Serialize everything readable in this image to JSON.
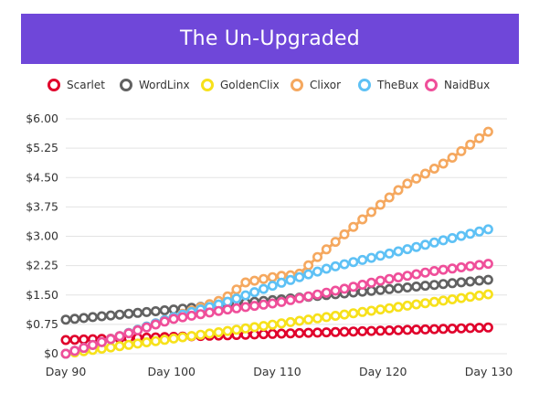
{
  "header": {
    "title": "The Un-Upgraded"
  },
  "chart_data": {
    "type": "line",
    "title": "The Un-Upgraded",
    "xlabel": "",
    "ylabel": "",
    "x_ticks": [
      "Day 90",
      "Day 100",
      "Day 110",
      "Day 120",
      "Day 130"
    ],
    "y_ticks": [
      "$6.00",
      "$5.25",
      "$4.50",
      "$3.75",
      "$3.00",
      "$2.25",
      "$1.50",
      "$0.75",
      "$0"
    ],
    "xlim": [
      90,
      130
    ],
    "ylim": [
      0,
      6
    ],
    "grid": true,
    "legend": "top",
    "series": [
      {
        "name": "Scarlet",
        "color": "#e0002b",
        "start": 0.35,
        "end": 0.67
      },
      {
        "name": "WordLinx",
        "color": "#616161",
        "start": 0.87,
        "end": 1.89
      },
      {
        "name": "GoldenClix",
        "color": "#f7e11b",
        "start": 0.0,
        "end": 1.52
      },
      {
        "name": "Clixor",
        "color": "#f5a85f",
        "start": 0.0,
        "end": 5.68,
        "points": [
          [
            90,
            0
          ],
          [
            95,
            0.44
          ],
          [
            100,
            0.92
          ],
          [
            105,
            1.4
          ],
          [
            107,
            1.82
          ],
          [
            110,
            1.98
          ],
          [
            112,
            2.02
          ],
          [
            114,
            2.52
          ],
          [
            118,
            3.42
          ],
          [
            122,
            4.3
          ],
          [
            126,
            4.9
          ],
          [
            130,
            5.68
          ]
        ]
      },
      {
        "name": "TheBux",
        "color": "#5ec1f5",
        "start": 0.0,
        "end": 3.18,
        "points": [
          [
            90,
            0
          ],
          [
            95,
            0.44
          ],
          [
            100,
            0.92
          ],
          [
            105,
            1.3
          ],
          [
            110,
            1.78
          ],
          [
            115,
            2.2
          ],
          [
            120,
            2.52
          ],
          [
            125,
            2.85
          ],
          [
            130,
            3.18
          ]
        ]
      },
      {
        "name": "NaidBux",
        "color": "#ef4f9a",
        "start": 0.0,
        "end": 2.3,
        "points": [
          [
            90,
            0
          ],
          [
            95,
            0.44
          ],
          [
            100,
            0.88
          ],
          [
            105,
            1.12
          ],
          [
            110,
            1.3
          ],
          [
            115,
            1.58
          ],
          [
            120,
            1.88
          ],
          [
            125,
            2.12
          ],
          [
            130,
            2.3
          ]
        ]
      }
    ]
  }
}
